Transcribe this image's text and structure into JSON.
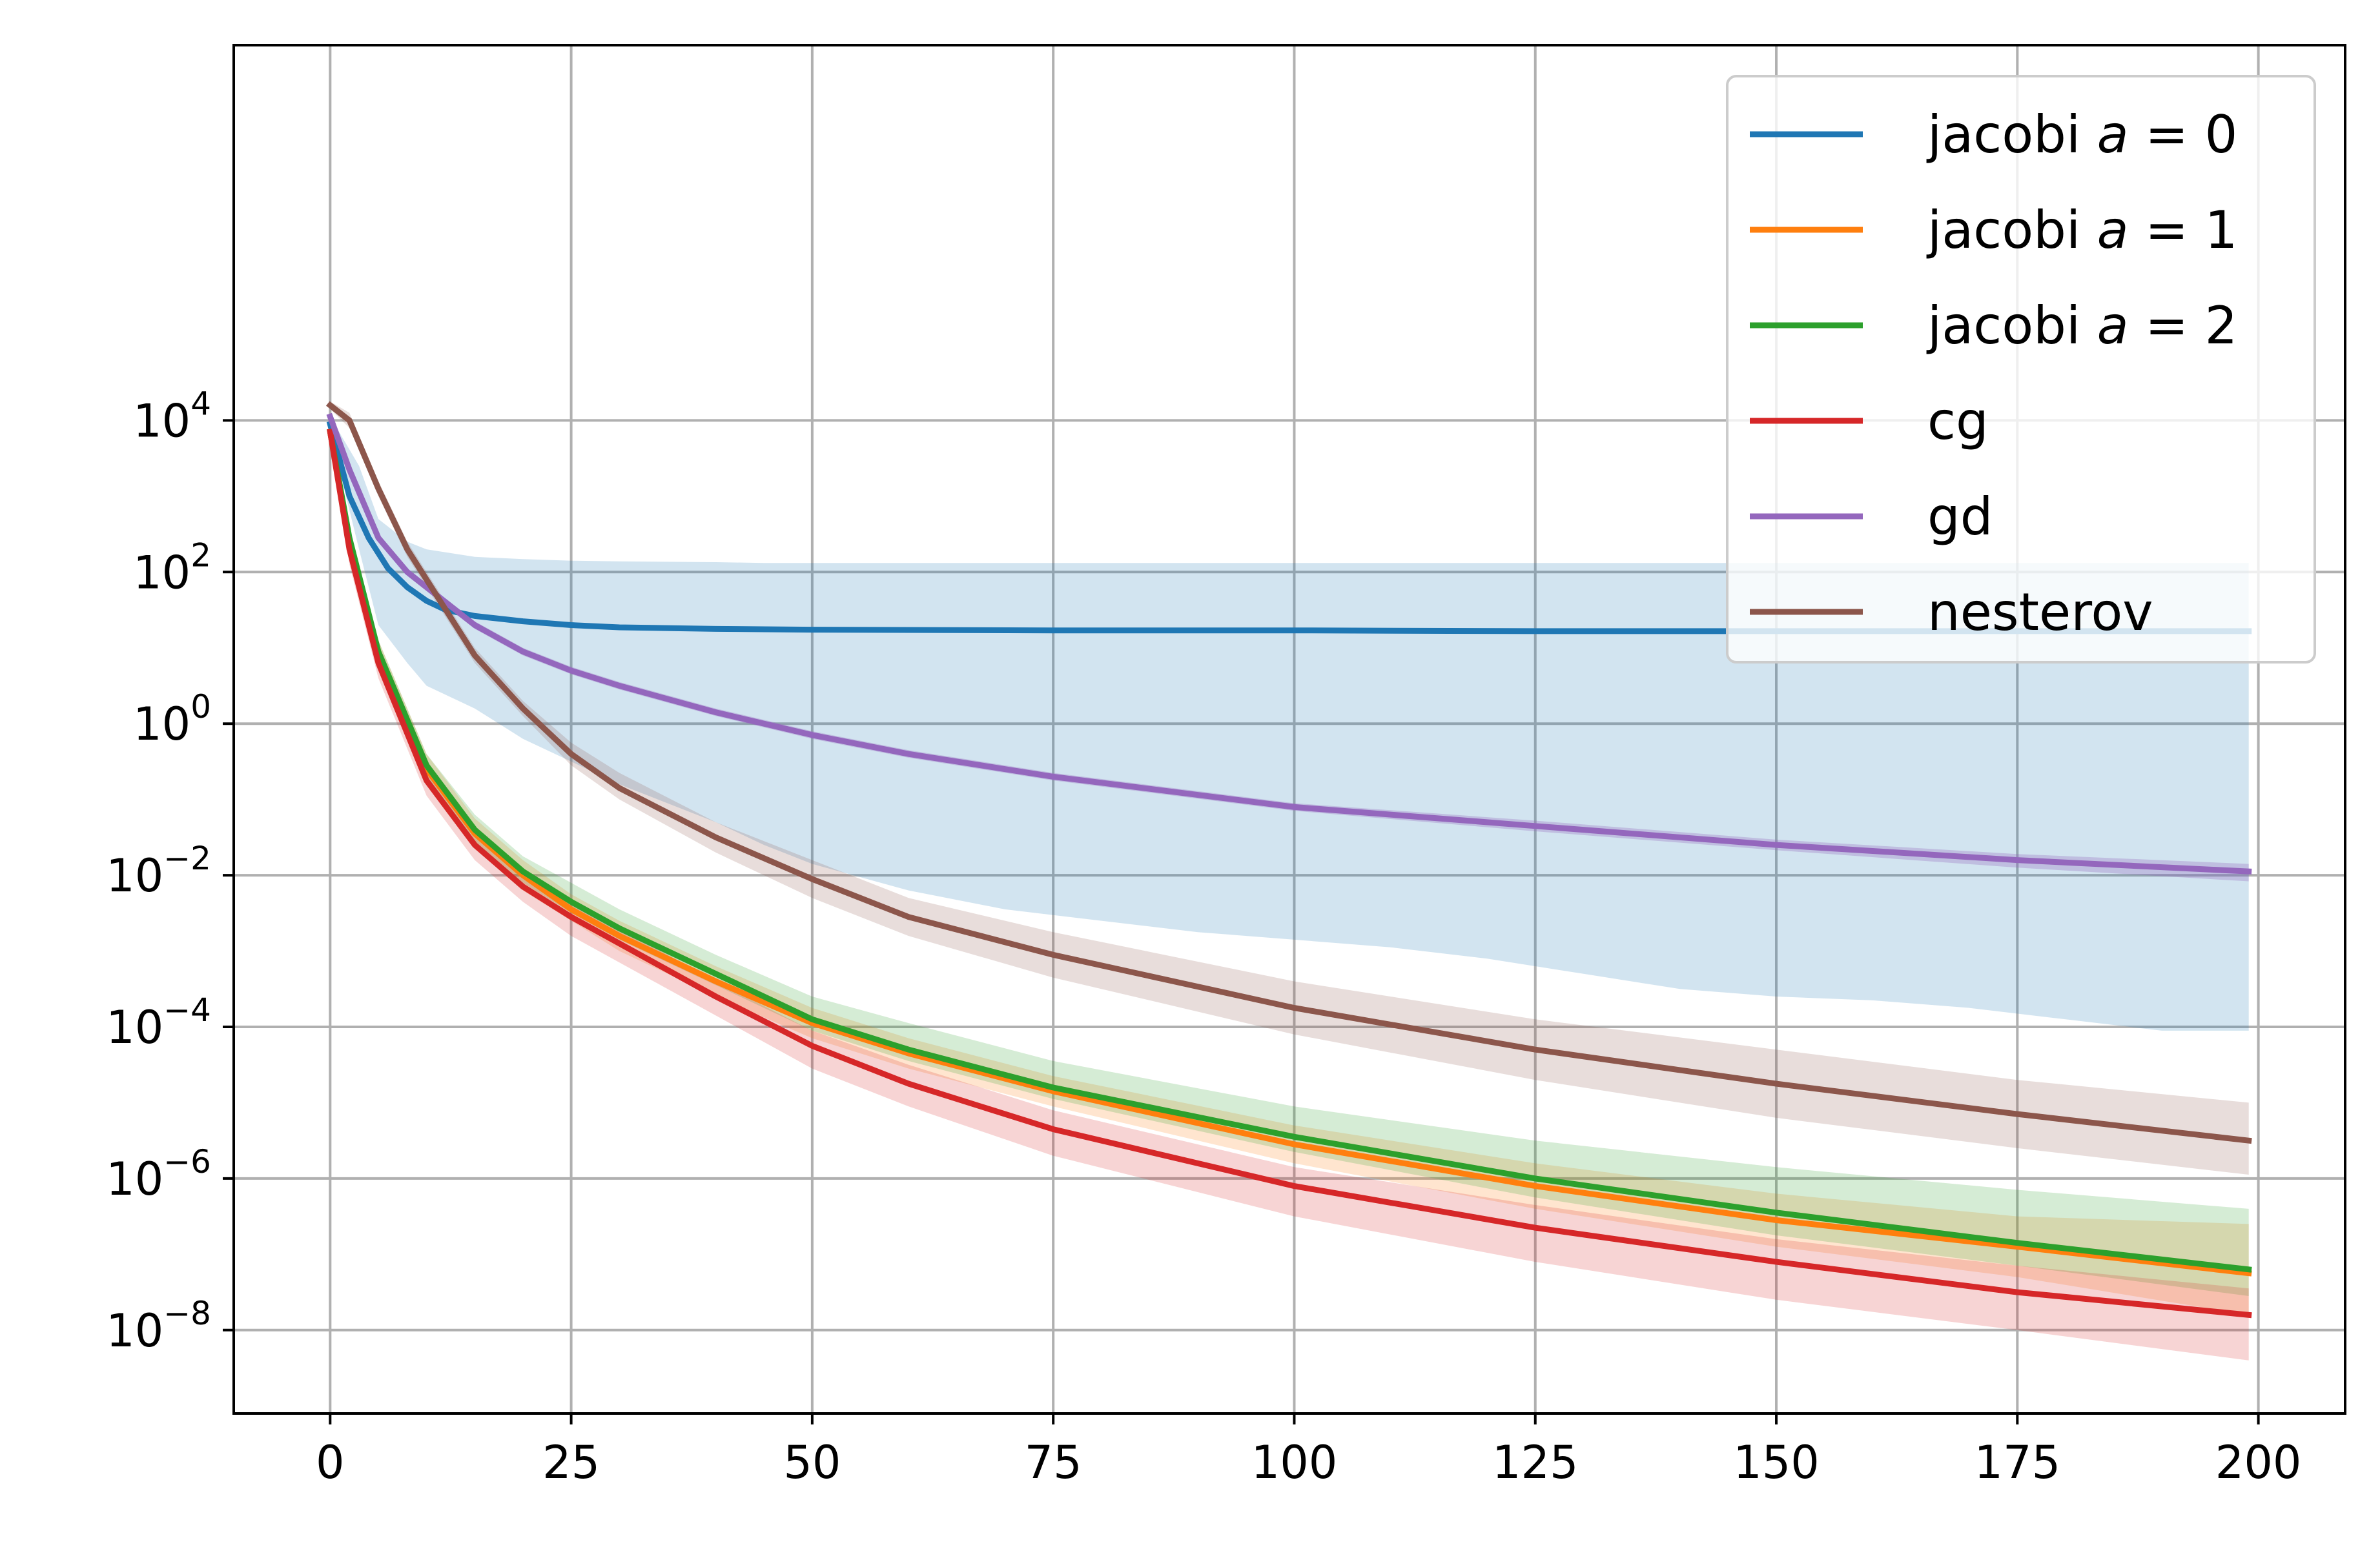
{
  "chart_data": {
    "type": "line",
    "title": "",
    "xlabel": "",
    "ylabel": "",
    "yscale": "log",
    "xlim": [
      -10,
      209
    ],
    "ylim_log10": [
      -9.1,
      8.95
    ],
    "grid": true,
    "legend_loc": "upper right",
    "x_ticks": [
      "0",
      "25",
      "50",
      "75",
      "100",
      "125",
      "150",
      "175",
      "200"
    ],
    "y_ticks": [
      {
        "base": "10",
        "exp": "4",
        "log10": 4
      },
      {
        "base": "10",
        "exp": "2",
        "log10": 2
      },
      {
        "base": "10",
        "exp": "0",
        "log10": 0
      },
      {
        "base": "10",
        "exp": "−2",
        "log10": -2
      },
      {
        "base": "10",
        "exp": "−4",
        "log10": -4
      },
      {
        "base": "10",
        "exp": "−6",
        "log10": -6
      },
      {
        "base": "10",
        "exp": "−8",
        "log10": -8
      }
    ],
    "series": [
      {
        "name": "jacobi a = 0",
        "legend_prefix": "jacobi ",
        "legend_var": "a",
        "legend_eq": " = 0",
        "color": "#1f77b4",
        "band_opacity": 0.2,
        "x": [
          0,
          2,
          4,
          6,
          8,
          10,
          12,
          15,
          20,
          25,
          30,
          40,
          50,
          75,
          100,
          125,
          150,
          175,
          199
        ],
        "log10": [
          3.95,
          3.0,
          2.45,
          2.05,
          1.8,
          1.62,
          1.5,
          1.42,
          1.35,
          1.3,
          1.27,
          1.25,
          1.24,
          1.23,
          1.23,
          1.22,
          1.22,
          1.22,
          1.22
        ],
        "band_x": [
          0,
          3,
          5,
          8,
          10,
          15,
          20,
          25,
          30,
          40,
          45,
          50,
          60,
          70,
          80,
          90,
          100,
          110,
          120,
          130,
          140,
          150,
          160,
          170,
          180,
          190,
          199
        ],
        "band_lower": [
          3.85,
          2.3,
          1.3,
          0.8,
          0.5,
          0.2,
          -0.2,
          -0.5,
          -0.8,
          -1.3,
          -1.6,
          -1.85,
          -2.2,
          -2.45,
          -2.6,
          -2.75,
          -2.85,
          -2.95,
          -3.1,
          -3.3,
          -3.5,
          -3.6,
          -3.65,
          -3.75,
          -3.9,
          -4.05,
          -4.05
        ],
        "band_upper": [
          4.05,
          3.4,
          2.7,
          2.4,
          2.3,
          2.2,
          2.17,
          2.15,
          2.14,
          2.13,
          2.12,
          2.12,
          2.12,
          2.12,
          2.12,
          2.12,
          2.12,
          2.12,
          2.12,
          2.12,
          2.12,
          2.12,
          2.12,
          2.12,
          2.12,
          2.12,
          2.12
        ]
      },
      {
        "name": "jacobi a = 1",
        "legend_prefix": "jacobi ",
        "legend_var": "a",
        "legend_eq": " = 1",
        "color": "#ff7f0e",
        "band_opacity": 0.2,
        "x": [
          0,
          2,
          5,
          10,
          15,
          20,
          25,
          30,
          40,
          50,
          60,
          75,
          100,
          125,
          150,
          175,
          199
        ],
        "log10": [
          3.85,
          2.4,
          0.9,
          -0.6,
          -1.45,
          -2.0,
          -2.45,
          -2.8,
          -3.4,
          -3.95,
          -4.35,
          -4.85,
          -5.55,
          -6.1,
          -6.55,
          -6.9,
          -7.25
        ],
        "band_lower": [
          3.75,
          2.2,
          0.7,
          -0.8,
          -1.65,
          -2.2,
          -2.6,
          -3.0,
          -3.6,
          -4.15,
          -4.55,
          -5.05,
          -5.8,
          -6.4,
          -6.9,
          -7.3,
          -7.8
        ],
        "band_upper": [
          3.95,
          2.6,
          1.1,
          -0.4,
          -1.25,
          -1.8,
          -2.25,
          -2.6,
          -3.2,
          -3.75,
          -4.15,
          -4.65,
          -5.3,
          -5.8,
          -6.2,
          -6.5,
          -6.6
        ]
      },
      {
        "name": "jacobi a = 2",
        "legend_prefix": "jacobi ",
        "legend_var": "a",
        "legend_eq": " = 2",
        "color": "#2ca02c",
        "band_opacity": 0.2,
        "x": [
          0,
          2,
          5,
          10,
          15,
          20,
          25,
          30,
          40,
          50,
          60,
          75,
          100,
          125,
          150,
          175,
          199
        ],
        "log10": [
          3.85,
          2.45,
          0.95,
          -0.55,
          -1.4,
          -1.95,
          -2.35,
          -2.7,
          -3.3,
          -3.9,
          -4.3,
          -4.8,
          -5.45,
          -6.0,
          -6.45,
          -6.85,
          -7.2
        ],
        "band_lower": [
          3.75,
          2.3,
          0.8,
          -0.7,
          -1.55,
          -2.1,
          -2.5,
          -2.85,
          -3.45,
          -4.05,
          -4.45,
          -4.95,
          -5.65,
          -6.25,
          -6.75,
          -7.15,
          -7.55
        ],
        "band_upper": [
          3.95,
          2.6,
          1.1,
          -0.4,
          -1.2,
          -1.75,
          -2.1,
          -2.45,
          -3.05,
          -3.6,
          -3.95,
          -4.45,
          -5.05,
          -5.5,
          -5.85,
          -6.15,
          -6.4
        ]
      },
      {
        "name": "cg",
        "legend_prefix": "cg",
        "legend_var": "",
        "legend_eq": "",
        "color": "#d62728",
        "band_opacity": 0.2,
        "x": [
          0,
          2,
          5,
          10,
          15,
          20,
          25,
          30,
          40,
          50,
          60,
          75,
          100,
          125,
          150,
          175,
          199
        ],
        "log10": [
          3.85,
          2.3,
          0.8,
          -0.75,
          -1.6,
          -2.15,
          -2.55,
          -2.9,
          -3.6,
          -4.25,
          -4.75,
          -5.35,
          -6.1,
          -6.65,
          -7.1,
          -7.5,
          -7.8
        ],
        "band_lower": [
          3.75,
          2.1,
          0.6,
          -0.95,
          -1.8,
          -2.35,
          -2.8,
          -3.15,
          -3.85,
          -4.55,
          -5.05,
          -5.7,
          -6.5,
          -7.1,
          -7.6,
          -8.0,
          -8.4
        ],
        "band_upper": [
          3.95,
          2.5,
          1.0,
          -0.55,
          -1.4,
          -1.95,
          -2.35,
          -2.7,
          -3.4,
          -4.05,
          -4.5,
          -5.1,
          -5.85,
          -6.35,
          -6.8,
          -7.15,
          -7.45
        ]
      },
      {
        "name": "gd",
        "legend_prefix": "gd",
        "legend_var": "",
        "legend_eq": "",
        "color": "#9467bd",
        "band_opacity": 0.3,
        "x": [
          0,
          2,
          5,
          8,
          10,
          15,
          20,
          25,
          30,
          40,
          50,
          60,
          75,
          100,
          125,
          150,
          175,
          199
        ],
        "log10": [
          4.05,
          3.35,
          2.45,
          2.0,
          1.8,
          1.3,
          0.95,
          0.7,
          0.5,
          0.15,
          -0.15,
          -0.4,
          -0.7,
          -1.1,
          -1.35,
          -1.6,
          -1.8,
          -1.95
        ],
        "band_lower": [
          4.0,
          3.3,
          2.4,
          1.95,
          1.75,
          1.25,
          0.9,
          0.65,
          0.45,
          0.1,
          -0.2,
          -0.45,
          -0.75,
          -1.15,
          -1.42,
          -1.67,
          -1.9,
          -2.08
        ],
        "band_upper": [
          4.1,
          3.4,
          2.5,
          2.05,
          1.85,
          1.35,
          1.0,
          0.75,
          0.55,
          0.2,
          -0.1,
          -0.35,
          -0.65,
          -1.05,
          -1.28,
          -1.53,
          -1.72,
          -1.85
        ]
      },
      {
        "name": "nesterov",
        "legend_prefix": "nesterov",
        "legend_var": "",
        "legend_eq": "",
        "color": "#8c564b",
        "band_opacity": 0.2,
        "x": [
          0,
          2,
          5,
          8,
          10,
          15,
          20,
          25,
          30,
          40,
          50,
          60,
          75,
          100,
          125,
          150,
          175,
          199
        ],
        "log10": [
          4.2,
          4.0,
          3.1,
          2.3,
          1.9,
          0.9,
          0.2,
          -0.4,
          -0.85,
          -1.5,
          -2.05,
          -2.55,
          -3.05,
          -3.75,
          -4.3,
          -4.75,
          -5.15,
          -5.5
        ],
        "band_lower": [
          4.15,
          3.9,
          3.0,
          2.2,
          1.8,
          0.8,
          0.1,
          -0.55,
          -1.0,
          -1.7,
          -2.3,
          -2.8,
          -3.35,
          -4.1,
          -4.7,
          -5.2,
          -5.6,
          -5.95
        ],
        "band_upper": [
          4.25,
          4.1,
          3.2,
          2.4,
          2.0,
          1.0,
          0.3,
          -0.25,
          -0.65,
          -1.3,
          -1.8,
          -2.3,
          -2.75,
          -3.4,
          -3.9,
          -4.3,
          -4.7,
          -5.0
        ]
      }
    ]
  }
}
